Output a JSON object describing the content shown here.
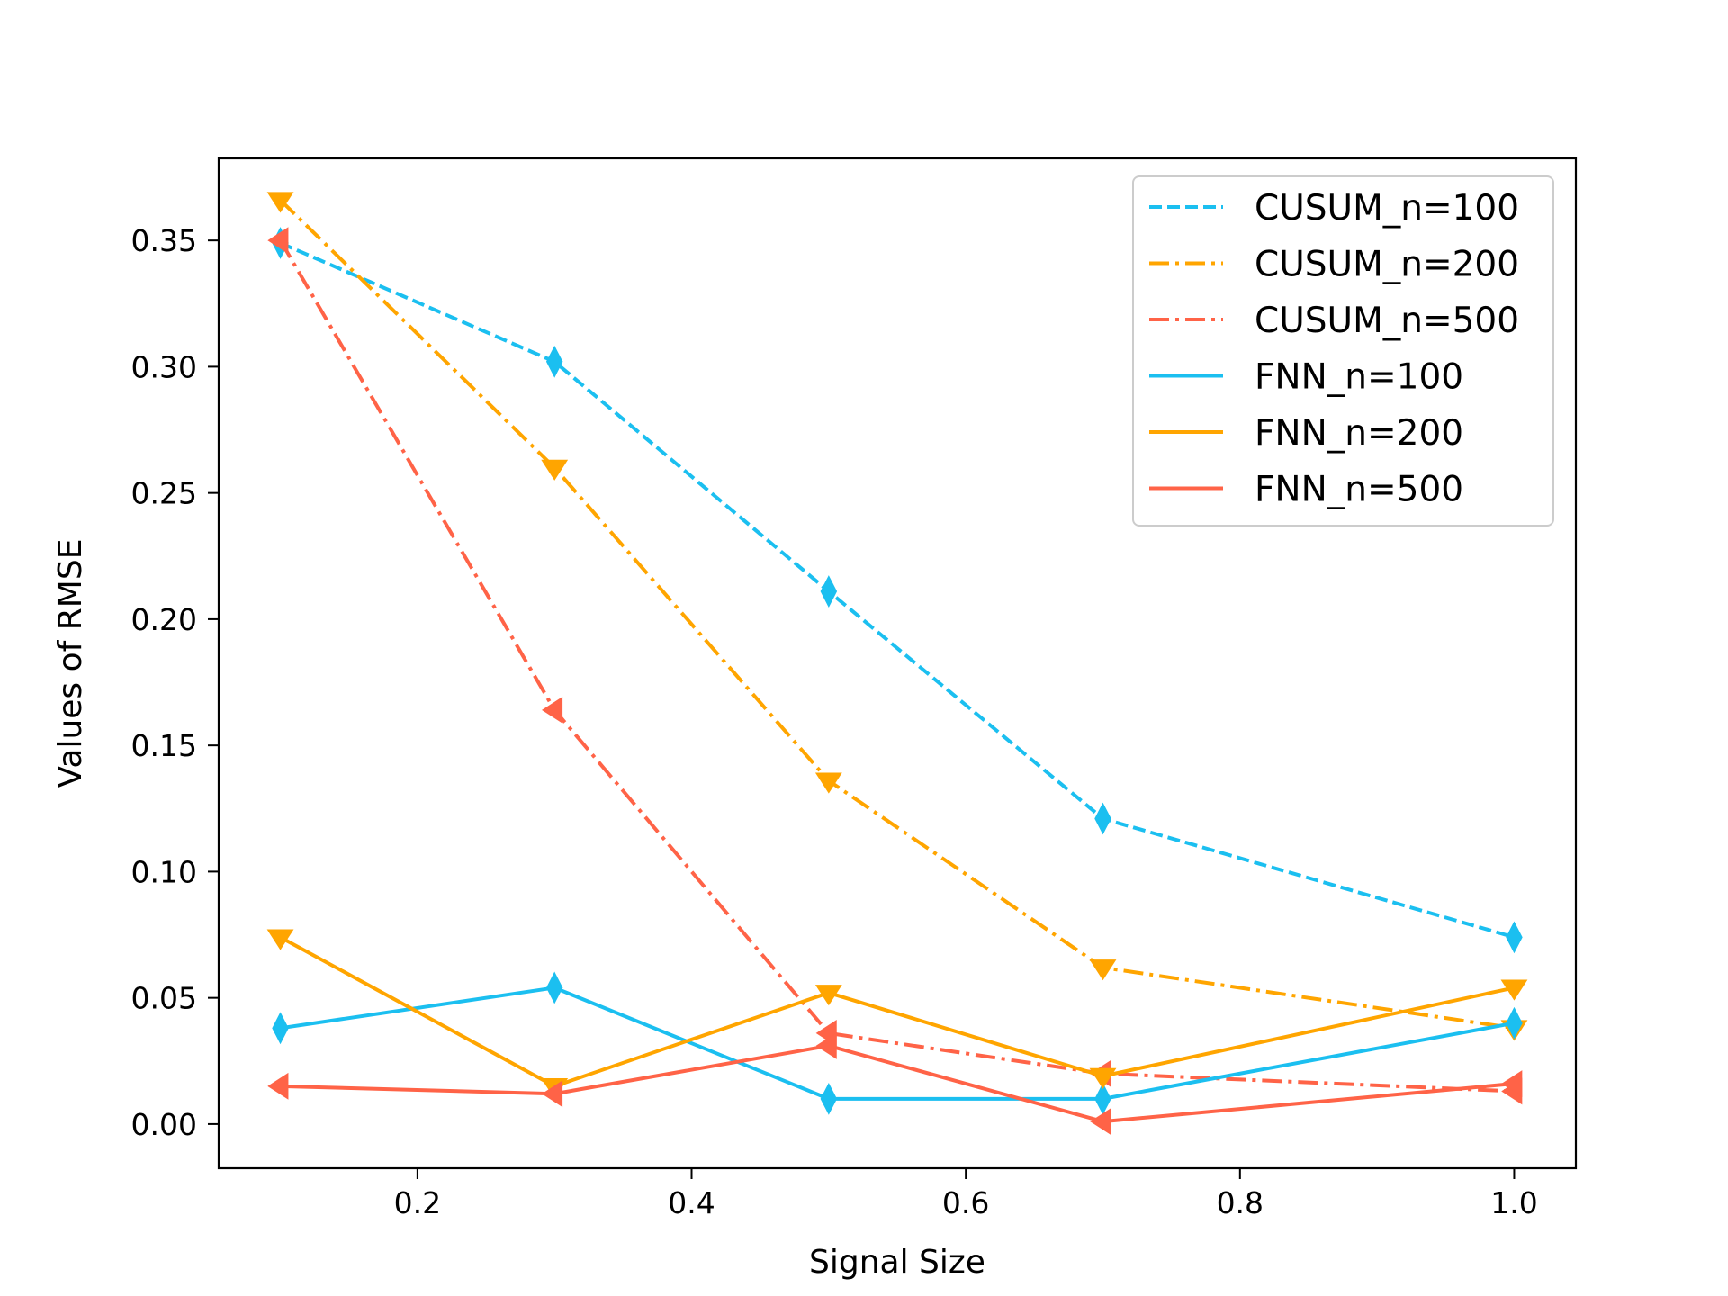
{
  "chart_data": {
    "type": "line",
    "title": "",
    "xlabel": "Signal Size",
    "ylabel": "Values of RMSE",
    "xlim": [
      0.055,
      1.045
    ],
    "ylim": [
      -0.0175,
      0.3825
    ],
    "xticks": [
      0.2,
      0.4,
      0.6,
      0.8,
      1.0
    ],
    "xtick_labels": [
      "0.2",
      "0.4",
      "0.6",
      "0.8",
      "1.0"
    ],
    "yticks": [
      0.0,
      0.05,
      0.1,
      0.15,
      0.2,
      0.25,
      0.3,
      0.35
    ],
    "ytick_labels": [
      "0.00",
      "0.05",
      "0.10",
      "0.15",
      "0.20",
      "0.25",
      "0.30",
      "0.35"
    ],
    "grid": false,
    "legend_position": "top-right",
    "x": [
      0.1,
      0.3,
      0.5,
      0.7,
      1.0
    ],
    "series": [
      {
        "name": "CUSUM_n=100",
        "values": [
          0.349,
          0.302,
          0.211,
          0.121,
          0.074
        ],
        "color": "#1BBFF0",
        "style": "dashed",
        "marker": "diamond"
      },
      {
        "name": "CUSUM_n=200",
        "values": [
          0.366,
          0.26,
          0.136,
          0.062,
          0.038
        ],
        "color": "#FFA500",
        "style": "dashdot",
        "marker": "triangle-down"
      },
      {
        "name": "CUSUM_n=500",
        "values": [
          0.35,
          0.164,
          0.036,
          0.02,
          0.013
        ],
        "color": "#FF6347",
        "style": "dashdot",
        "marker": "triangle-left"
      },
      {
        "name": "FNN_n=100",
        "values": [
          0.038,
          0.054,
          0.01,
          0.01,
          0.04
        ],
        "color": "#1BBFF0",
        "style": "solid",
        "marker": "diamond"
      },
      {
        "name": "FNN_n=200",
        "values": [
          0.074,
          0.015,
          0.052,
          0.019,
          0.054
        ],
        "color": "#FFA500",
        "style": "solid",
        "marker": "triangle-down"
      },
      {
        "name": "FNN_n=500",
        "values": [
          0.015,
          0.012,
          0.031,
          0.001,
          0.016
        ],
        "color": "#FF6347",
        "style": "solid",
        "marker": "triangle-left"
      }
    ]
  }
}
